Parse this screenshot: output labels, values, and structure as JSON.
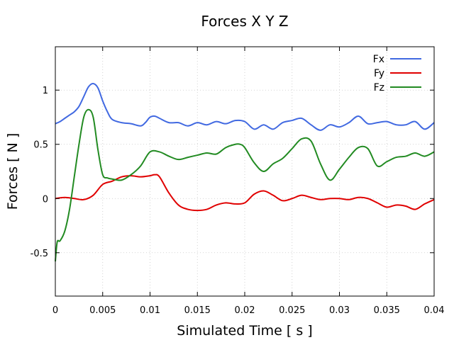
{
  "chart_data": {
    "type": "line",
    "title": "Forces X Y Z",
    "xlabel": "Simulated Time [ s ]",
    "ylabel": "Forces [ N ]",
    "xlim": [
      0,
      0.04
    ],
    "ylim": [
      -0.9,
      1.4
    ],
    "xticks": [
      0,
      0.005,
      0.01,
      0.015,
      0.02,
      0.025,
      0.03,
      0.035,
      0.04
    ],
    "xtick_labels": [
      "0",
      "0.005",
      "0.01",
      "0.015",
      "0.02",
      "0.025",
      "0.03",
      "0.035",
      "0.04"
    ],
    "yticks": [
      -0.5,
      0,
      0.5,
      1
    ],
    "ytick_labels": [
      "-0.5",
      "0",
      "0.5",
      "1"
    ],
    "grid": true,
    "legend_position": "top-right",
    "series": [
      {
        "name": "Fx",
        "color": "#4169e1",
        "x": [
          0,
          0.0005,
          0.001,
          0.0015,
          0.002,
          0.0025,
          0.003,
          0.0035,
          0.004,
          0.0045,
          0.005,
          0.0055,
          0.006,
          0.007,
          0.008,
          0.009,
          0.0095,
          0.01,
          0.0105,
          0.011,
          0.012,
          0.013,
          0.014,
          0.015,
          0.016,
          0.017,
          0.018,
          0.019,
          0.02,
          0.021,
          0.022,
          0.023,
          0.024,
          0.025,
          0.026,
          0.027,
          0.028,
          0.029,
          0.03,
          0.031,
          0.032,
          0.033,
          0.034,
          0.035,
          0.036,
          0.037,
          0.038,
          0.039,
          0.04
        ],
        "y": [
          0.69,
          0.71,
          0.74,
          0.77,
          0.8,
          0.85,
          0.94,
          1.03,
          1.06,
          1.02,
          0.9,
          0.8,
          0.73,
          0.7,
          0.69,
          0.67,
          0.7,
          0.75,
          0.76,
          0.74,
          0.7,
          0.7,
          0.67,
          0.7,
          0.68,
          0.71,
          0.69,
          0.72,
          0.71,
          0.64,
          0.68,
          0.64,
          0.7,
          0.72,
          0.74,
          0.68,
          0.63,
          0.68,
          0.66,
          0.7,
          0.76,
          0.69,
          0.7,
          0.71,
          0.68,
          0.68,
          0.71,
          0.64,
          0.7
        ]
      },
      {
        "name": "Fy",
        "color": "#e00000",
        "x": [
          0,
          0.001,
          0.002,
          0.003,
          0.004,
          0.005,
          0.006,
          0.007,
          0.008,
          0.009,
          0.01,
          0.0105,
          0.011,
          0.012,
          0.013,
          0.014,
          0.015,
          0.016,
          0.017,
          0.018,
          0.019,
          0.02,
          0.021,
          0.022,
          0.023,
          0.024,
          0.025,
          0.026,
          0.027,
          0.028,
          0.029,
          0.03,
          0.031,
          0.032,
          0.033,
          0.034,
          0.035,
          0.036,
          0.037,
          0.038,
          0.039,
          0.04
        ],
        "y": [
          0.0,
          0.01,
          0.0,
          -0.01,
          0.03,
          0.13,
          0.16,
          0.2,
          0.21,
          0.2,
          0.21,
          0.22,
          0.2,
          0.05,
          -0.06,
          -0.1,
          -0.11,
          -0.1,
          -0.06,
          -0.04,
          -0.05,
          -0.04,
          0.04,
          0.07,
          0.03,
          -0.02,
          0.0,
          0.03,
          0.01,
          -0.01,
          0.0,
          0.0,
          -0.01,
          0.01,
          0.0,
          -0.04,
          -0.08,
          -0.06,
          -0.07,
          -0.1,
          -0.05,
          -0.01
        ]
      },
      {
        "name": "Fz",
        "color": "#228b22",
        "x": [
          0,
          0.0002,
          0.0005,
          0.001,
          0.0015,
          0.002,
          0.0025,
          0.003,
          0.0035,
          0.004,
          0.0045,
          0.005,
          0.0055,
          0.006,
          0.007,
          0.008,
          0.009,
          0.01,
          0.011,
          0.012,
          0.013,
          0.014,
          0.015,
          0.016,
          0.017,
          0.018,
          0.019,
          0.0195,
          0.02,
          0.021,
          0.022,
          0.023,
          0.024,
          0.025,
          0.026,
          0.027,
          0.028,
          0.029,
          0.03,
          0.031,
          0.032,
          0.033,
          0.034,
          0.035,
          0.036,
          0.037,
          0.038,
          0.039,
          0.04
        ],
        "y": [
          -0.58,
          -0.4,
          -0.39,
          -0.3,
          -0.1,
          0.2,
          0.5,
          0.75,
          0.82,
          0.75,
          0.45,
          0.22,
          0.19,
          0.18,
          0.17,
          0.22,
          0.3,
          0.43,
          0.43,
          0.39,
          0.36,
          0.38,
          0.4,
          0.42,
          0.41,
          0.47,
          0.5,
          0.5,
          0.47,
          0.33,
          0.25,
          0.32,
          0.37,
          0.46,
          0.55,
          0.53,
          0.32,
          0.17,
          0.27,
          0.38,
          0.47,
          0.46,
          0.3,
          0.34,
          0.38,
          0.39,
          0.42,
          0.39,
          0.43
        ]
      }
    ]
  }
}
